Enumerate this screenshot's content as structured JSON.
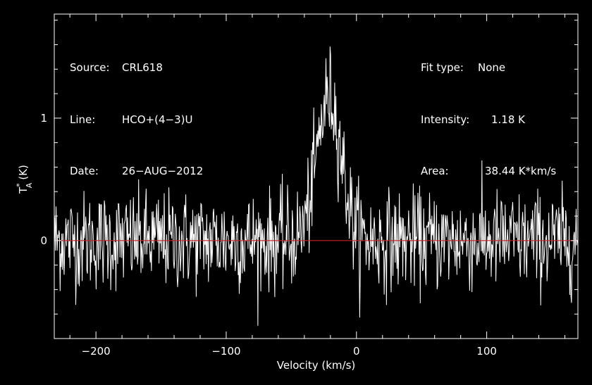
{
  "header": {
    "source_label": "Source:",
    "source_value": "CRL618",
    "line_label": "Line:",
    "line_value": "HCO+(4−3)U",
    "date_label": "Date:",
    "date_value": "26−AUG−2012",
    "fit_label": "Fit type:",
    "fit_value": "None",
    "intensity_label": "Intensity:",
    "intensity_value": "1.18 K",
    "area_label": "Area:",
    "area_value": "38.44 K*km/s"
  },
  "chart_data": {
    "type": "line",
    "xlabel": "Velocity (km/s)",
    "ylabel": "T",
    "ylabel_sup": "*",
    "ylabel_sub": "A",
    "ylabel_unit": "(K)",
    "xlim": [
      -232,
      170
    ],
    "ylim": [
      -0.8,
      1.85
    ],
    "xticks": [
      -200,
      -100,
      0,
      100
    ],
    "xtick_labels": [
      "−200",
      "−100",
      "0",
      "100"
    ],
    "yticks": [
      0,
      1
    ],
    "ytick_labels": [
      "0",
      "1"
    ],
    "baseline_y": 0,
    "noise_rms_K": 0.2,
    "line_profile": {
      "center_kms": -21,
      "peak_K": 1.18,
      "fwhm_kms": 22,
      "area_K_kms": 38.44
    },
    "colors": {
      "background": "#000000",
      "axes": "#ffffff",
      "spectrum": "#ffffff",
      "baseline": "#cc1f1f"
    },
    "grid": false,
    "legend": "none"
  }
}
